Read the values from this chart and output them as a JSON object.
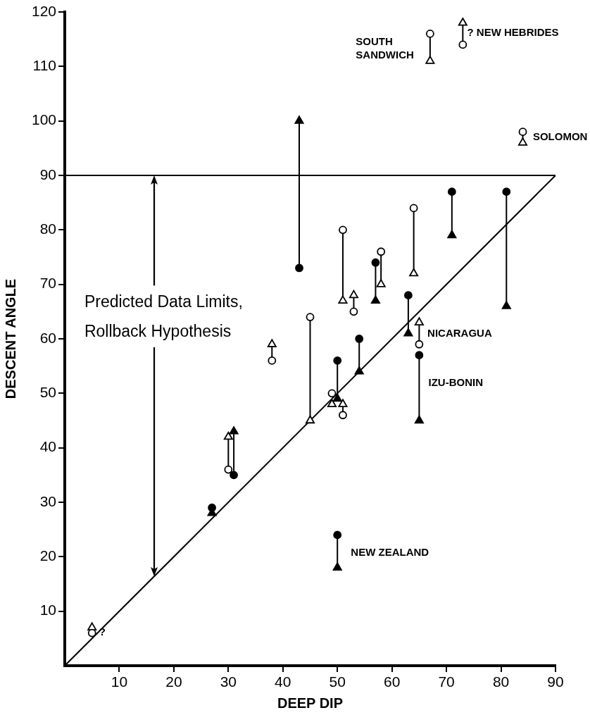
{
  "chart_data": {
    "type": "scatter",
    "xlabel": "DEEP DIP",
    "ylabel": "DESCENT ANGLE",
    "xlim": [
      0,
      90
    ],
    "ylim": [
      0,
      120
    ],
    "xticks": [
      10,
      20,
      30,
      40,
      50,
      60,
      70,
      80,
      90
    ],
    "yticks": [
      10,
      20,
      30,
      40,
      50,
      60,
      70,
      80,
      90,
      100,
      110,
      120
    ],
    "grid": false,
    "legend": false,
    "series": [
      {
        "type": "line",
        "color": "#000000",
        "marker": "none",
        "x": [
          0,
          90
        ],
        "values": [
          0,
          90
        ]
      },
      {
        "type": "line",
        "color": "#000000",
        "marker": "none",
        "x": [
          43,
          43
        ],
        "values": [
          73,
          100
        ]
      },
      {
        "type": "line",
        "color": "#000000",
        "marker": "none",
        "x": [
          71,
          71
        ],
        "values": [
          87,
          79
        ]
      },
      {
        "type": "line",
        "color": "#000000",
        "marker": "none",
        "x": [
          81,
          81
        ],
        "values": [
          87,
          66
        ]
      },
      {
        "type": "line",
        "color": "#000000",
        "marker": "none",
        "x": [
          57,
          57
        ],
        "values": [
          74,
          67
        ]
      },
      {
        "type": "line",
        "color": "#000000",
        "marker": "none",
        "x": [
          63,
          63
        ],
        "values": [
          68,
          61
        ]
      },
      {
        "type": "line",
        "color": "#000000",
        "marker": "none",
        "x": [
          65,
          65
        ],
        "values": [
          57,
          45
        ]
      },
      {
        "type": "line",
        "color": "#000000",
        "marker": "none",
        "x": [
          54,
          54
        ],
        "values": [
          60,
          54
        ]
      },
      {
        "type": "line",
        "color": "#000000",
        "marker": "none",
        "x": [
          50,
          50
        ],
        "values": [
          56,
          49
        ]
      },
      {
        "type": "line",
        "color": "#000000",
        "marker": "none",
        "x": [
          31,
          31
        ],
        "values": [
          35,
          43
        ]
      },
      {
        "type": "line",
        "color": "#000000",
        "marker": "none",
        "x": [
          50,
          50
        ],
        "values": [
          24,
          18
        ]
      },
      {
        "type": "line",
        "color": "#000000",
        "marker": "none",
        "x": [
          67,
          67
        ],
        "values": [
          116,
          111
        ]
      },
      {
        "type": "line",
        "color": "#000000",
        "marker": "none",
        "x": [
          73,
          73
        ],
        "values": [
          114,
          118
        ]
      },
      {
        "type": "line",
        "color": "#000000",
        "marker": "none",
        "x": [
          84,
          84
        ],
        "values": [
          98,
          96
        ]
      },
      {
        "type": "line",
        "color": "#000000",
        "marker": "none",
        "x": [
          64,
          64
        ],
        "values": [
          84,
          72
        ]
      },
      {
        "type": "line",
        "color": "#000000",
        "marker": "none",
        "x": [
          51,
          51
        ],
        "values": [
          80,
          67
        ]
      },
      {
        "type": "line",
        "color": "#000000",
        "marker": "none",
        "x": [
          53,
          53
        ],
        "values": [
          65,
          68
        ]
      },
      {
        "type": "line",
        "color": "#000000",
        "marker": "none",
        "x": [
          58,
          58
        ],
        "values": [
          76,
          70
        ]
      },
      {
        "type": "line",
        "color": "#000000",
        "marker": "none",
        "x": [
          65,
          65
        ],
        "values": [
          59,
          63
        ]
      },
      {
        "type": "line",
        "color": "#000000",
        "marker": "none",
        "x": [
          45,
          45
        ],
        "values": [
          64,
          45
        ]
      },
      {
        "type": "line",
        "color": "#000000",
        "marker": "none",
        "x": [
          51,
          51
        ],
        "values": [
          46,
          48
        ]
      },
      {
        "type": "line",
        "color": "#000000",
        "marker": "none",
        "x": [
          38,
          38
        ],
        "values": [
          56,
          59
        ]
      },
      {
        "type": "line",
        "color": "#000000",
        "marker": "none",
        "x": [
          30,
          30
        ],
        "values": [
          36,
          42
        ]
      },
      {
        "type": "scatter",
        "color": "#000000",
        "marker": "circle",
        "x": [
          43,
          71,
          81,
          57,
          63,
          65,
          54,
          50,
          31,
          27,
          50
        ],
        "values": [
          73,
          87,
          87,
          74,
          68,
          57,
          60,
          56,
          35,
          29,
          24
        ]
      },
      {
        "type": "scatter",
        "color": "#000000",
        "marker": "triangle",
        "x": [
          43,
          71,
          81,
          57,
          63,
          65,
          54,
          50,
          31,
          27,
          50
        ],
        "values": [
          100,
          79,
          66,
          67,
          61,
          45,
          54,
          49,
          43,
          28,
          18
        ]
      },
      {
        "type": "scatter",
        "color": "#ffffff",
        "marker": "circle",
        "x": [
          67,
          73,
          84,
          64,
          51,
          53,
          58,
          65,
          45,
          49,
          51,
          38,
          30,
          5
        ],
        "values": [
          116,
          114,
          98,
          84,
          80,
          65,
          76,
          59,
          64,
          50,
          46,
          56,
          36,
          6
        ]
      },
      {
        "type": "scatter",
        "color": "#ffffff",
        "marker": "triangle",
        "x": [
          67,
          73,
          84,
          64,
          51,
          53,
          58,
          65,
          45,
          49,
          51,
          38,
          30,
          5
        ],
        "values": [
          111,
          118,
          96,
          72,
          67,
          68,
          70,
          63,
          45,
          48,
          48,
          59,
          42,
          7
        ]
      }
    ],
    "ref_lines": [
      {
        "axis": "y",
        "value": 90,
        "color": "#000000"
      }
    ],
    "annotations": [
      "Predicted Data Limits,\nRollback Hypothesis",
      "SOUTH\nSANDWICH",
      "? NEW HEBRIDES",
      "SOLOMON",
      "NICARAGUA",
      "IZU-BONIN",
      "NEW ZEALAND",
      "?"
    ]
  }
}
